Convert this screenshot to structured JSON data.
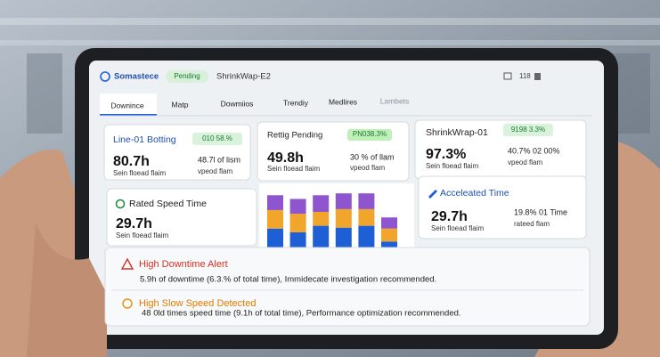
{
  "header": {
    "brand": "Somastece",
    "status": "Pending",
    "machine": "ShrinkWap-E2",
    "counter": "118"
  },
  "tabs": [
    "Downince",
    "Matp",
    "Dowmiios",
    "Trendiy",
    "Medlires",
    "Lambets"
  ],
  "cards": [
    {
      "title": "Line-01 Botting",
      "badge": "010 58.%",
      "value": "80.7h",
      "caption": "Sein floead flaim",
      "detail": "48.7l of lism",
      "detail_caption": "vpeod flam"
    },
    {
      "title": "Rettig Pending",
      "badge": "PN038.3%",
      "value": "49.8h",
      "caption": "Sein floead flaim",
      "detail": "30 % of llam",
      "detail_caption": "vpeod flam"
    },
    {
      "title": "ShrinkWrap-01",
      "badge": "9198 3.3%",
      "value": "97.3%",
      "caption": "Sein floead flaim",
      "detail": "40.7% 02 00%",
      "detail_caption": "vpeod flam"
    },
    {
      "title": "Rated Speed Time",
      "value": "29.7h",
      "caption": "Sein floead flaim"
    },
    {
      "title": "Acceleated Time",
      "value": "29.7h",
      "caption": "Sein floead flaim",
      "detail": "19.8% 01 Time",
      "detail_caption": "rateed flam"
    }
  ],
  "chart_data": {
    "type": "stacked-bar",
    "ylim": [
      0,
      75
    ],
    "series": [
      {
        "color": "#1f5fd6",
        "values": [
          32,
          28,
          35,
          33,
          35,
          18
        ]
      },
      {
        "color": "#f2a52b",
        "values": [
          20,
          20,
          15,
          20,
          18,
          14
        ]
      },
      {
        "color": "#8e55cf",
        "values": [
          16,
          16,
          18,
          17,
          17,
          12
        ]
      }
    ]
  },
  "alerts": [
    {
      "title": "High Downtime Alert",
      "text": "5.9h of downtime (6.3.% of total time), Immidecate investigation recommended."
    },
    {
      "title": "High Slow Speed Detected",
      "text": "48 0ld times speed time (9.1h of total time), Performance optimization recommended."
    }
  ]
}
